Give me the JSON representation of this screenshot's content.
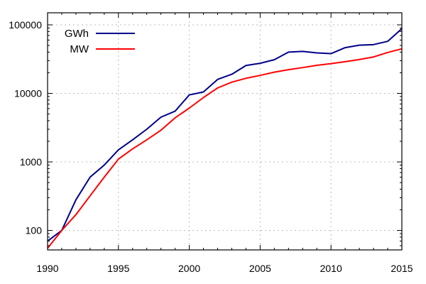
{
  "chart_data": {
    "type": "line",
    "title": "",
    "xlabel": "",
    "ylabel": "",
    "xscale": "linear",
    "yscale": "log",
    "xlim": [
      1990,
      2015
    ],
    "ylim": [
      52,
      150000
    ],
    "grid": true,
    "legend_position": "top-left",
    "x_ticks": [
      1990,
      1995,
      2000,
      2005,
      2010,
      2015
    ],
    "x_tick_labels": [
      "1990",
      "1995",
      "2000",
      "2005",
      "2010",
      "2015"
    ],
    "y_ticks": [
      100,
      1000,
      10000,
      100000
    ],
    "y_tick_labels": [
      "100",
      "1000",
      "10000",
      "100000"
    ],
    "series": [
      {
        "name": "GWh",
        "color": "#00008b",
        "x": [
          1990,
          1991,
          1992,
          1993,
          1994,
          1995,
          1996,
          1997,
          1998,
          1999,
          2000,
          2001,
          2002,
          2003,
          2004,
          2005,
          2006,
          2007,
          2008,
          2009,
          2010,
          2011,
          2012,
          2013,
          2014,
          2015
        ],
        "y": [
          70,
          100,
          280,
          600,
          900,
          1500,
          2100,
          3000,
          4500,
          5500,
          9500,
          10500,
          16000,
          19000,
          25500,
          27500,
          31000,
          40000,
          41000,
          39000,
          38000,
          46500,
          50500,
          51500,
          57500,
          88000
        ]
      },
      {
        "name": "MW",
        "color": "#ff0000",
        "x": [
          1990,
          1991,
          1992,
          1993,
          1994,
          1995,
          1996,
          1997,
          1998,
          1999,
          2000,
          2001,
          2002,
          2003,
          2004,
          2005,
          2006,
          2007,
          2008,
          2009,
          2010,
          2011,
          2012,
          2013,
          2014,
          2015
        ],
        "y": [
          55,
          100,
          170,
          320,
          600,
          1100,
          1550,
          2100,
          2900,
          4400,
          6100,
          8700,
          12000,
          14600,
          16600,
          18300,
          20400,
          22200,
          23800,
          25700,
          27200,
          29000,
          31200,
          34000,
          39500,
          44800
        ]
      }
    ]
  }
}
